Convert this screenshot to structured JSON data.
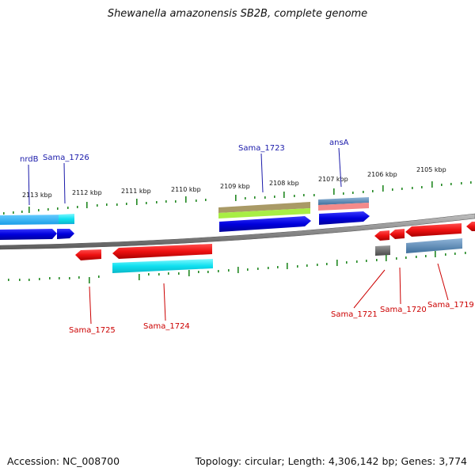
{
  "title": "Shewanella amazonensis SB2B, complete genome",
  "footer": {
    "accession": "Accession: NC_008700",
    "summary": "Topology: circular; Length: 4,306,142 bp; Genes: 3,774"
  },
  "scale_labels": [
    "2113 kbp",
    "2112 kbp",
    "2111 kbp",
    "2110 kbp",
    "2109 kbp",
    "2108 kbp",
    "2107 kbp",
    "2106 kbp",
    "2105 kbp"
  ],
  "gene_labels_top": [
    "nrdB",
    "Sama_1726",
    "Sama_1723",
    "ansA"
  ],
  "gene_labels_bottom": [
    "Sama_1725",
    "Sama_1724",
    "Sama_1721",
    "Sama_1720",
    "Sama_1719"
  ],
  "colors": {
    "forward_cds": "#0000dd",
    "reverse_cds": "#ee1111",
    "cyan_feature": "#10e0f0",
    "backbone": "#8a8a8a",
    "tick": "#228822",
    "label_top": "#1a1aaa",
    "label_bottom": "#cc0000"
  }
}
